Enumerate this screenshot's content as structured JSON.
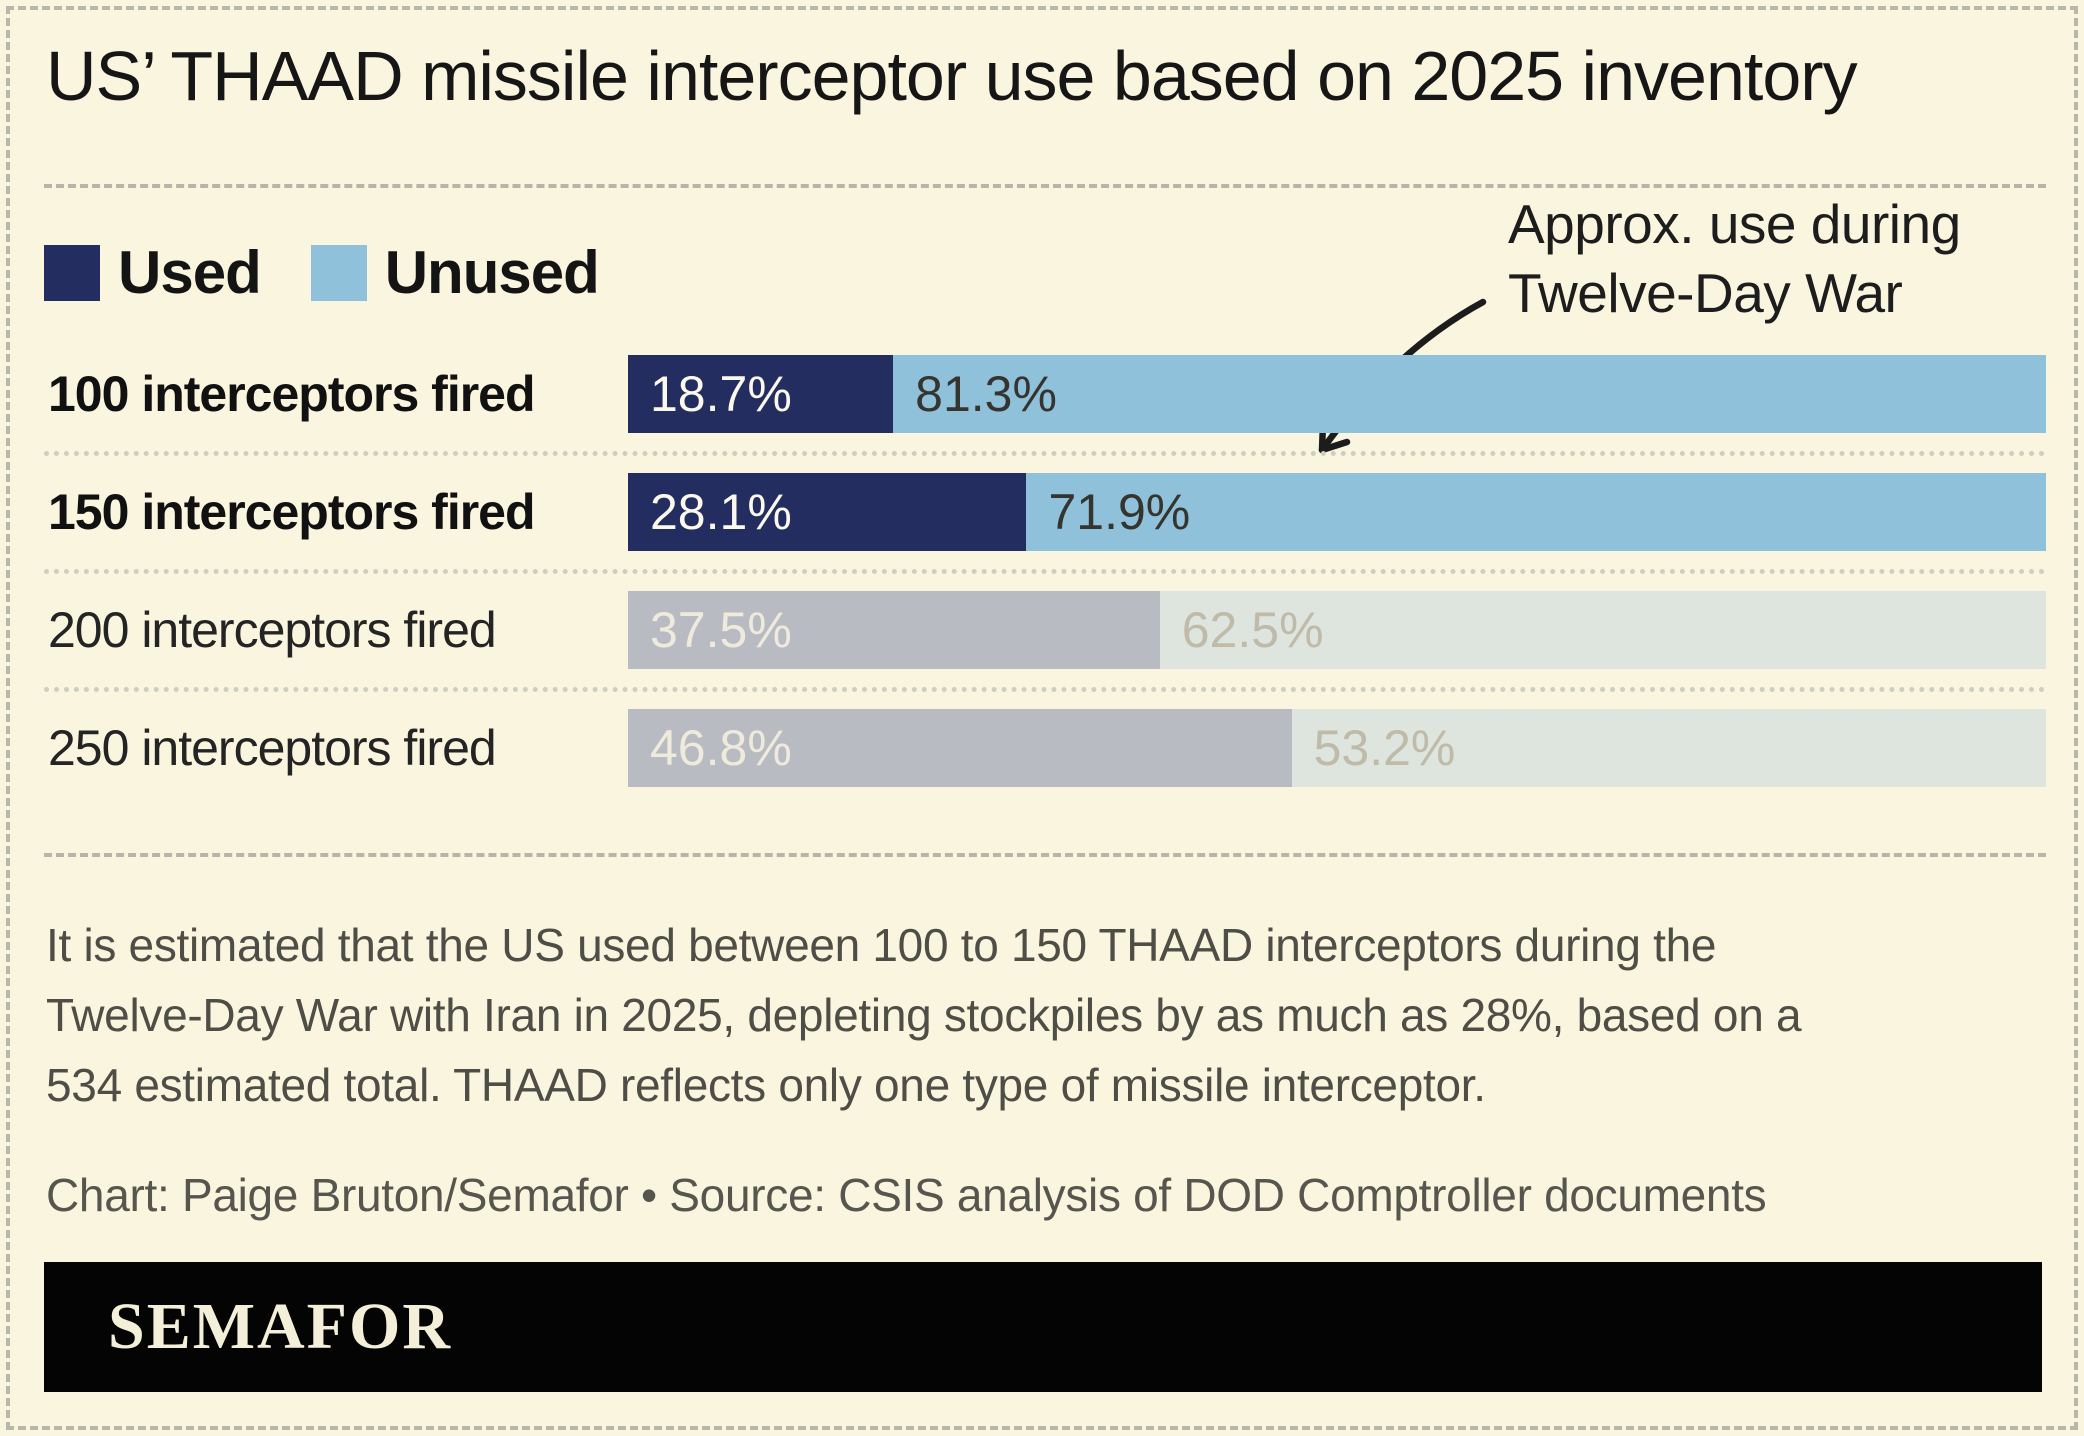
{
  "title": "US’ THAAD missile interceptor use based on 2025 inventory",
  "legend": {
    "used": "Used",
    "unused": "Unused"
  },
  "annotation": {
    "line1": "Approx. use during",
    "line2": "Twelve-Day War"
  },
  "chart_data": {
    "type": "bar",
    "orientation": "horizontal-stacked",
    "unit": "percent",
    "title": "US’ THAAD missile interceptor use based on 2025 inventory",
    "categories": [
      "100 interceptors fired",
      "150 interceptors fired",
      "200 interceptors fired",
      "250 interceptors fired"
    ],
    "series": [
      {
        "name": "Used",
        "values": [
          18.7,
          28.1,
          37.5,
          46.8
        ]
      },
      {
        "name": "Unused",
        "values": [
          81.3,
          71.9,
          62.5,
          53.2
        ]
      }
    ],
    "rows": [
      {
        "label": "100 interceptors fired",
        "used_pct": 18.7,
        "unused_pct": 81.3,
        "used_label": "18.7%",
        "unused_label": "81.3%",
        "highlighted": true
      },
      {
        "label": "150 interceptors fired",
        "used_pct": 28.1,
        "unused_pct": 71.9,
        "used_label": "28.1%",
        "unused_label": "71.9%",
        "highlighted": true
      },
      {
        "label": "200 interceptors fired",
        "used_pct": 37.5,
        "unused_pct": 62.5,
        "used_label": "37.5%",
        "unused_label": "62.5%",
        "highlighted": false
      },
      {
        "label": "250 interceptors fired",
        "used_pct": 46.8,
        "unused_pct": 53.2,
        "used_label": "46.8%",
        "unused_label": "53.2%",
        "highlighted": false
      }
    ],
    "annotation": "Approx. use during Twelve-Day War",
    "legend_position": "top-left",
    "xlim": [
      0,
      100
    ],
    "colors": {
      "used": "#232d5f",
      "unused": "#90c1db",
      "muted_used": "#b9bbc3",
      "muted_unused": "#dde5de",
      "background": "#f9f5df"
    }
  },
  "footnote": {
    "lines": [
      "It is estimated that the US used between 100 to 150 THAAD interceptors during the",
      "Twelve-Day War with Iran in 2025, depleting stockpiles by as much as 28%, based on a",
      "534 estimated total. THAAD reflects only one type of missile interceptor."
    ]
  },
  "credit": "Chart: Paige Bruton/Semafor • Source: CSIS analysis of DOD Comptroller documents",
  "logo": "SEMAFOR"
}
